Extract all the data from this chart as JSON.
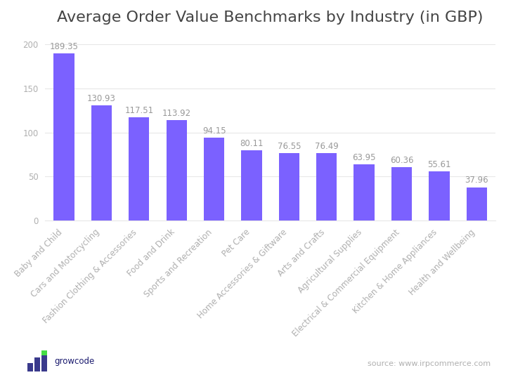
{
  "title": "Average Order Value Benchmarks by Industry (in GBP)",
  "categories": [
    "Baby and Child",
    "Cars and Motorcycling",
    "Fashion Clothing & Accessories",
    "Food and Drink",
    "Sports and Recreation",
    "Pet Care",
    "Home Accessories & Giftware",
    "Arts and Crafts",
    "Agricultural Supplies",
    "Electrical & Commercial Equipment",
    "Kitchen & Home Appliances",
    "Health and Wellbeing"
  ],
  "values": [
    189.35,
    130.93,
    117.51,
    113.92,
    94.15,
    80.11,
    76.55,
    76.49,
    63.95,
    60.36,
    55.61,
    37.96
  ],
  "bar_color": "#7B61FF",
  "background_color": "#ffffff",
  "ylim": [
    0,
    210
  ],
  "yticks": [
    0,
    50,
    100,
    150,
    200
  ],
  "grid_color": "#e8e8e8",
  "label_color": "#b0b0b0",
  "title_color": "#444444",
  "value_label_color": "#999999",
  "source_text": "source: www.irpcommerce.com",
  "source_color": "#b0b0b0",
  "growcode_text": "growcode",
  "growcode_color": "#1a1a6e",
  "logo_bar_color": "#3a3a8c",
  "logo_highlight_color": "#44dd44",
  "title_fontsize": 16,
  "tick_fontsize": 8.5,
  "value_fontsize": 8.5,
  "bar_width": 0.55
}
